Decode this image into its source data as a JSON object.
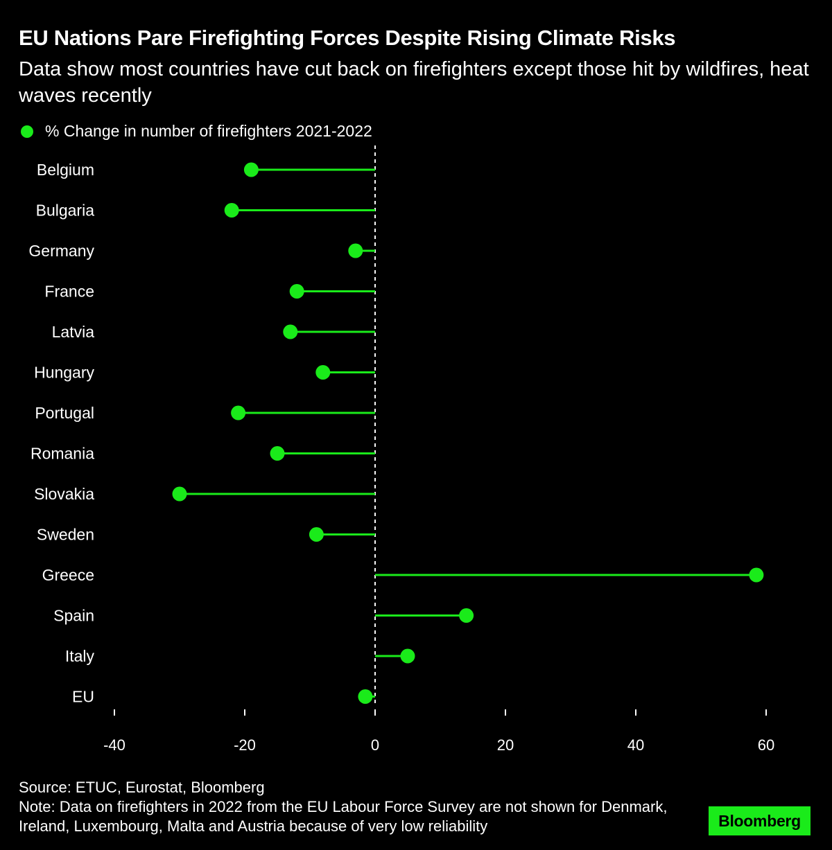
{
  "title": "EU Nations Pare Firefighting Forces Despite Rising Climate Risks",
  "subtitle": "Data show most countries have cut back on firefighters except those hit by wildfires, heat waves recently",
  "legend": {
    "label": "% Change in number of firefighters 2021-2022",
    "icon": "dot-icon"
  },
  "colors": {
    "background": "#000000",
    "accent": "#1aeb1a",
    "text": "#ffffff",
    "zero_line": "#ffffff"
  },
  "chart_data": {
    "type": "lollipop",
    "orientation": "horizontal",
    "categories": [
      "Belgium",
      "Bulgaria",
      "Germany",
      "France",
      "Latvia",
      "Hungary",
      "Portugal",
      "Romania",
      "Slovakia",
      "Sweden",
      "Greece",
      "Spain",
      "Italy",
      "EU"
    ],
    "series": [
      {
        "name": "% Change in number of firefighters 2021-2022",
        "values": [
          -19,
          -22,
          -3,
          -12,
          -13,
          -8,
          -21,
          -15,
          -30,
          -9,
          58.5,
          14,
          5,
          -1.5
        ]
      }
    ],
    "xlim": [
      -40,
      60
    ],
    "xticks": [
      -40,
      -20,
      0,
      20,
      40,
      60
    ],
    "xtick_labels": [
      "-40",
      "-20",
      "0",
      "20",
      "40",
      "60"
    ],
    "baseline": 0,
    "baseline_style": "dashed",
    "xlabel": "",
    "ylabel": "",
    "grid": false
  },
  "footer": {
    "source": "Source: ETUC, Eurostat, Bloomberg",
    "note": "Note: Data on firefighters in 2022 from the EU Labour Force Survey are not shown for Denmark, Ireland, Luxembourg, Malta and Austria because of very low reliability"
  },
  "brand": {
    "label": "Bloomberg"
  }
}
